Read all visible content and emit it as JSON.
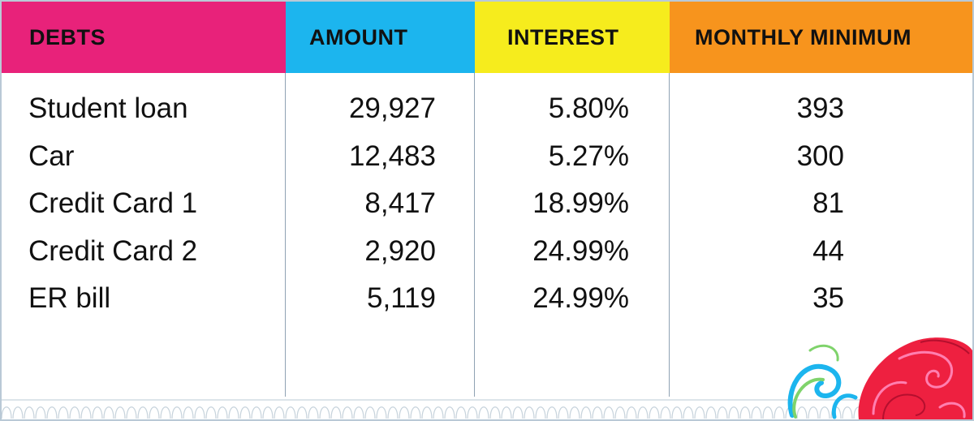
{
  "colors": {
    "debts_header": "#e8227a",
    "amount_header": "#1cb5ee",
    "interest_header": "#f6ec1d",
    "monthly_header": "#f7941d",
    "border": "#b9c9d6",
    "divider": "#8fa2b3"
  },
  "headers": {
    "debts": "DEBTS",
    "amount": "AMOUNT",
    "interest": "INTEREST",
    "monthly_minimum": "MONTHLY MINIMUM"
  },
  "rows": [
    {
      "name": "Student loan",
      "amount": "29,927",
      "interest": "5.80%",
      "minimum": "393"
    },
    {
      "name": "Car",
      "amount": "12,483",
      "interest": "5.27%",
      "minimum": "300"
    },
    {
      "name": "Credit Card 1",
      "amount": "8,417",
      "interest": "18.99%",
      "minimum": "81"
    },
    {
      "name": "Credit Card 2",
      "amount": "2,920",
      "interest": "24.99%",
      "minimum": "44"
    },
    {
      "name": "ER bill",
      "amount": "5,119",
      "interest": "24.99%",
      "minimum": "35"
    }
  ],
  "decoration": {
    "corner_ornament": "swirl-flourish-icon"
  }
}
